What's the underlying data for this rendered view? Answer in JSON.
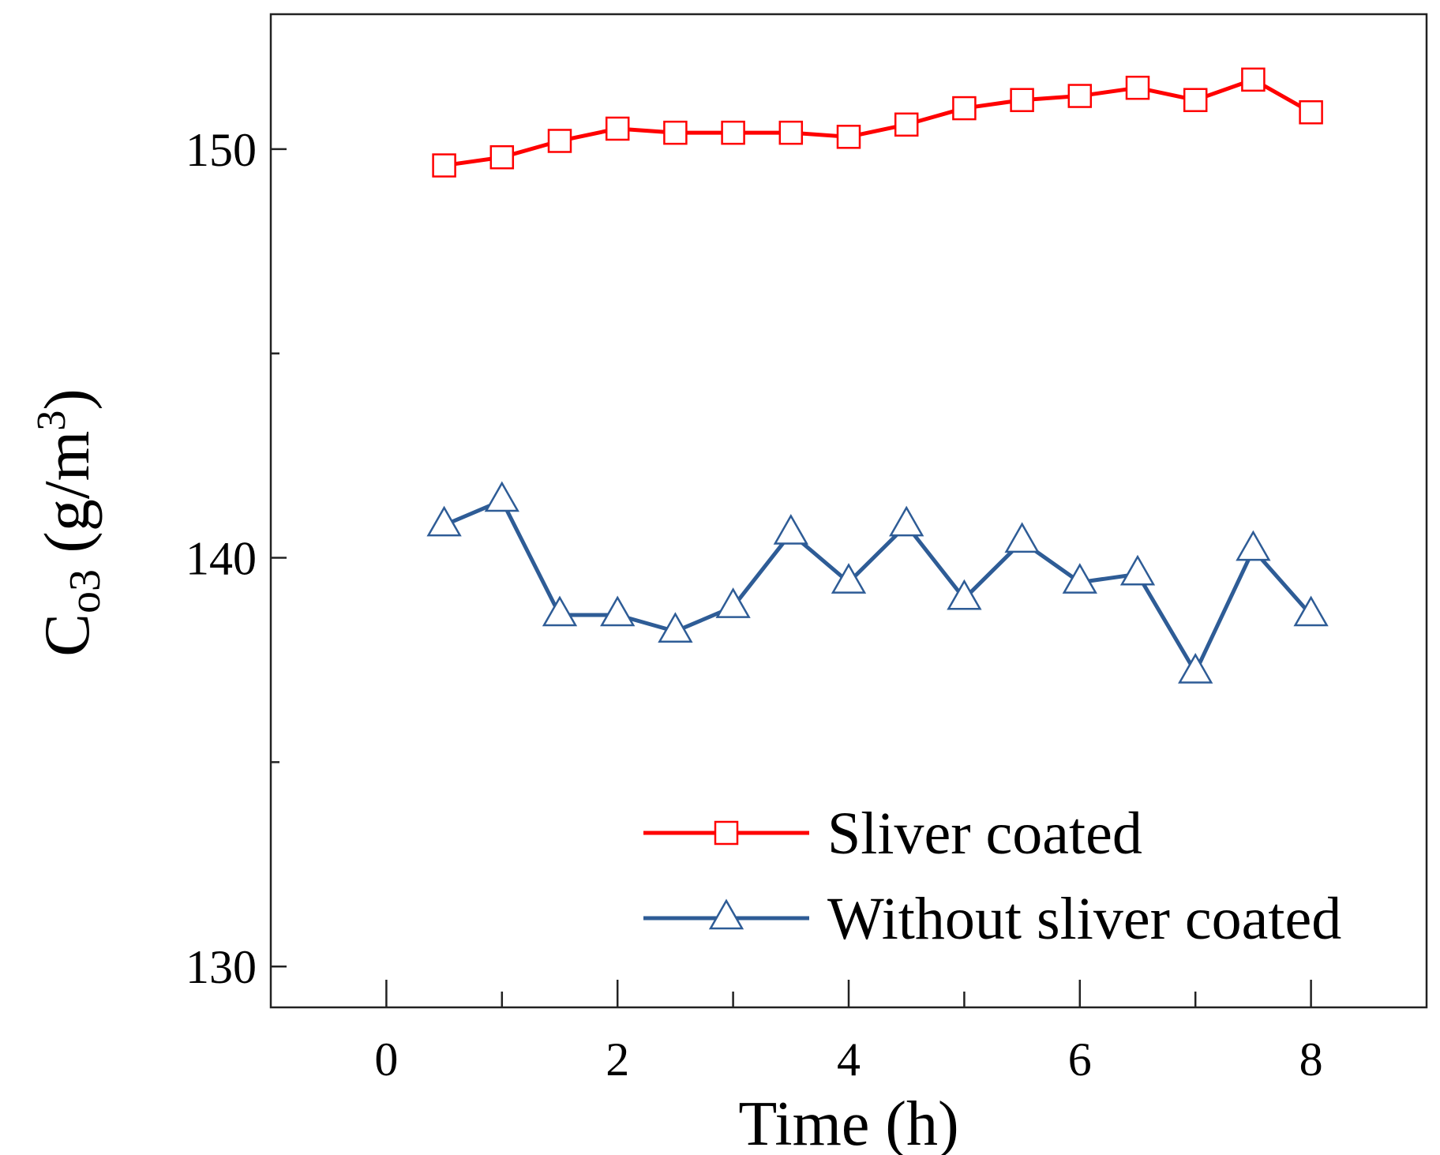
{
  "chart_data": {
    "type": "line",
    "title": "",
    "xlabel": "Time (h)",
    "ylabel": {
      "main": "C",
      "subscript": "o3",
      "unit_open": " (g/m",
      "superscript": "3",
      "unit_close": ")"
    },
    "xlim": [
      -1,
      9
    ],
    "ylim": [
      129.0,
      153.3
    ],
    "x_ticks": [
      0,
      2,
      4,
      6,
      8
    ],
    "x_minor_ticks": [
      1,
      3,
      5,
      7
    ],
    "y_ticks": [
      130,
      140,
      150
    ],
    "y_minor_ticks": [
      135,
      145
    ],
    "grid": false,
    "legend_position": "bottom-right",
    "x": [
      0.5,
      1.0,
      1.5,
      2.0,
      2.5,
      3.0,
      3.5,
      4.0,
      4.5,
      5.0,
      5.5,
      6.0,
      6.5,
      7.0,
      7.5,
      8.0
    ],
    "series": [
      {
        "name": "Sliver coated",
        "color": "#ff0000",
        "marker": "square",
        "values": [
          149.6,
          149.8,
          150.2,
          150.5,
          150.4,
          150.4,
          150.4,
          150.3,
          150.6,
          151.0,
          151.2,
          151.3,
          151.5,
          151.2,
          151.7,
          150.9
        ]
      },
      {
        "name": "Without sliver coated",
        "color": "#2e5c96",
        "marker": "triangle",
        "values": [
          140.8,
          141.4,
          138.6,
          138.6,
          138.2,
          138.8,
          140.6,
          139.4,
          140.8,
          139.0,
          140.4,
          139.4,
          139.6,
          137.2,
          140.2,
          138.6
        ]
      }
    ]
  }
}
